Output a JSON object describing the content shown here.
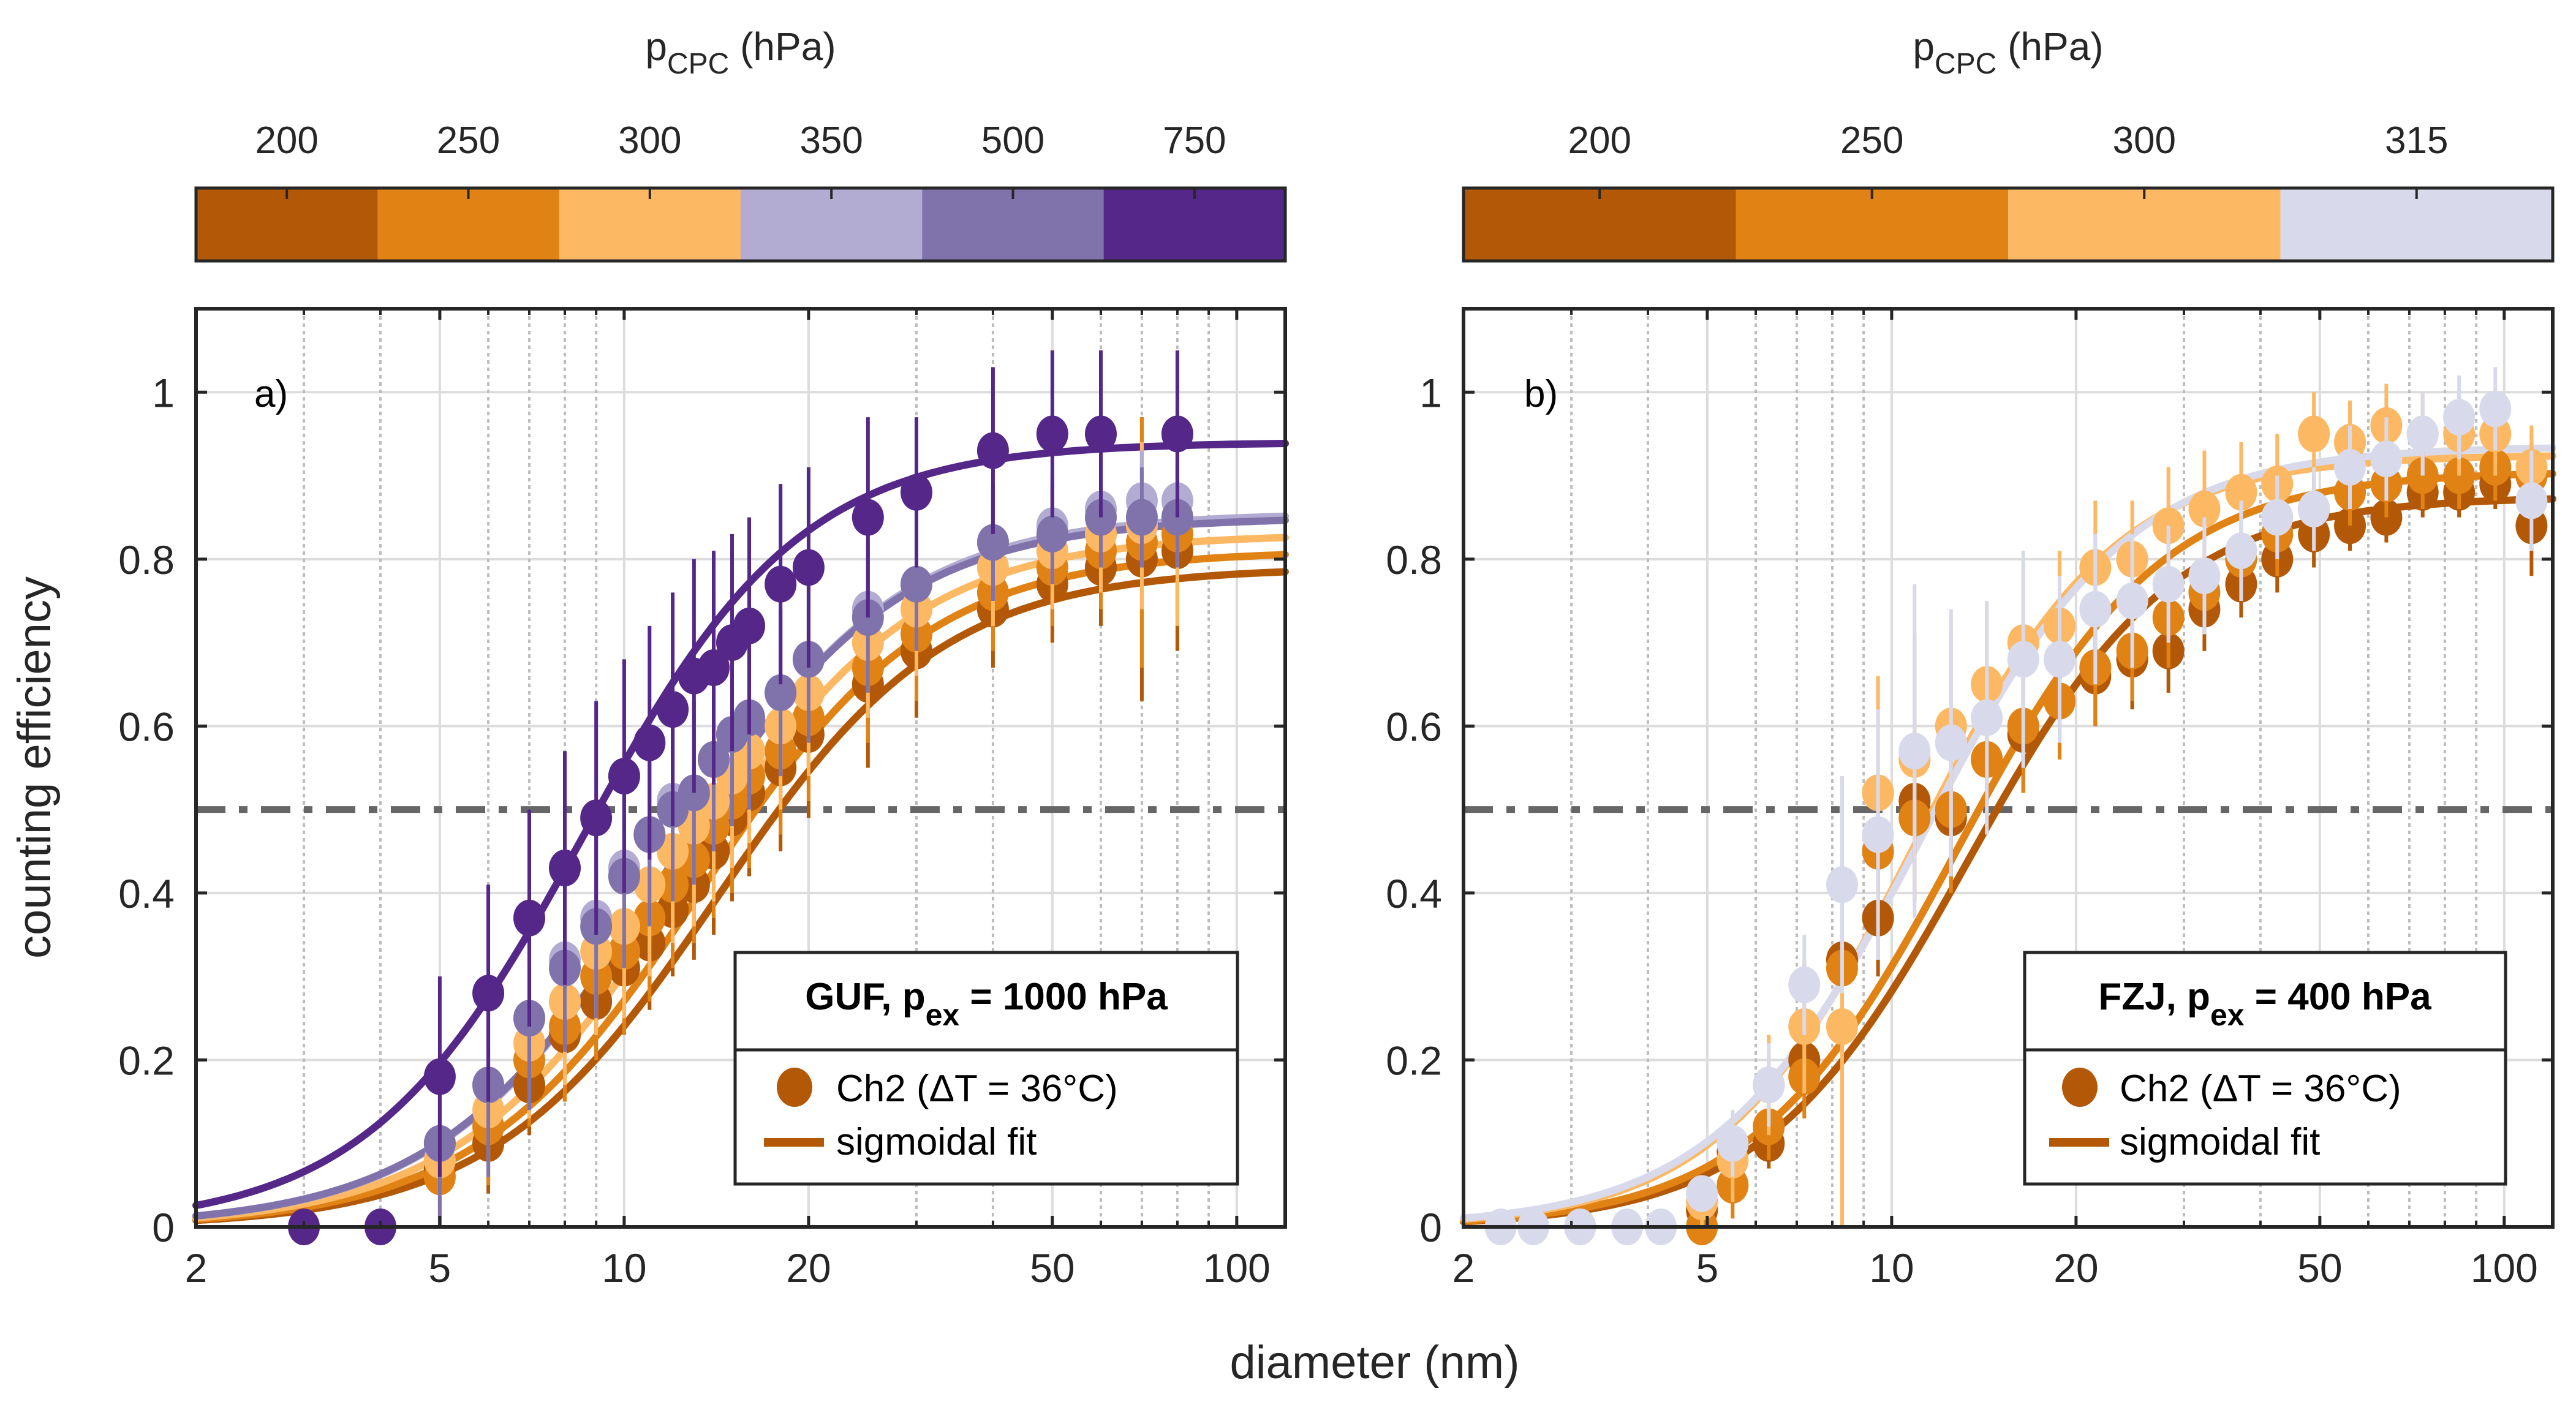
{
  "figure": {
    "xlabel": "diameter (nm)",
    "ylabel": "counting efficiency",
    "threshold_line": {
      "y": 0.5,
      "style": "dash-dot",
      "color": "#666666"
    }
  },
  "chart_data": [
    {
      "type": "scatter",
      "panel_label": "a)",
      "xscale": "log",
      "xlim": [
        2,
        120
      ],
      "ylim": [
        0,
        1.1
      ],
      "xticks": [
        2,
        5,
        10,
        20,
        50,
        100
      ],
      "xtick_labels": [
        "2",
        "5",
        "10",
        "20",
        "50",
        "100"
      ],
      "yticks": [
        0,
        0.2,
        0.4,
        0.6,
        0.8,
        1
      ],
      "ytick_labels": [
        "0",
        "0.2",
        "0.4",
        "0.6",
        "0.8",
        "1"
      ],
      "grid": true,
      "xlabel": "diameter (nm)",
      "ylabel": "counting efficiency",
      "colorbar": {
        "title_main": "p",
        "title_sub": "CPC",
        "title_unit": " (hPa)",
        "labels": [
          "200",
          "250",
          "300",
          "350",
          "500",
          "750"
        ],
        "colors": [
          "#b35806",
          "#e08214",
          "#fdb863",
          "#b2abd2",
          "#8073ac",
          "#542788"
        ]
      },
      "legend": {
        "title_main": "GUF, p",
        "title_sub": "ex",
        "title_tail": " = 1000 hPa",
        "entries": [
          {
            "kind": "marker",
            "label": "Ch2 (ΔT = 36°C)",
            "color": "#b35806"
          },
          {
            "kind": "line",
            "label": "sigmoidal fit",
            "color": "#b35806"
          }
        ],
        "placement": "lower-right"
      },
      "series": [
        {
          "name": "200 hPa",
          "color": "#b35806",
          "fit": {
            "A": 0.79,
            "d50": 14.2,
            "k": 2.35
          },
          "x": [
            5,
            6,
            7,
            8,
            9,
            10,
            11,
            12,
            13,
            14,
            15,
            16,
            18,
            20,
            25,
            30,
            40,
            50,
            60,
            70,
            80
          ],
          "y": [
            0.07,
            0.1,
            0.17,
            0.23,
            0.27,
            0.31,
            0.34,
            0.38,
            0.41,
            0.45,
            0.49,
            0.52,
            0.55,
            0.59,
            0.65,
            0.69,
            0.74,
            0.77,
            0.79,
            0.8,
            0.81
          ],
          "err": [
            0.04,
            0.06,
            0.06,
            0.06,
            0.07,
            0.08,
            0.08,
            0.08,
            0.09,
            0.1,
            0.1,
            0.1,
            0.1,
            0.1,
            0.1,
            0.08,
            0.07,
            0.07,
            0.07,
            0.17,
            0.12
          ]
        },
        {
          "name": "250 hPa",
          "color": "#e08214",
          "fit": {
            "A": 0.81,
            "d50": 13.4,
            "k": 2.35
          },
          "x": [
            5,
            6,
            7,
            8,
            9,
            10,
            11,
            12,
            13,
            14,
            15,
            16,
            18,
            20,
            25,
            30,
            40,
            50,
            60,
            70,
            80
          ],
          "y": [
            0.06,
            0.12,
            0.2,
            0.24,
            0.3,
            0.33,
            0.37,
            0.41,
            0.44,
            0.48,
            0.51,
            0.54,
            0.57,
            0.61,
            0.67,
            0.71,
            0.76,
            0.79,
            0.81,
            0.82,
            0.83
          ],
          "err": [
            0.05,
            0.07,
            0.08,
            0.09,
            0.1,
            0.1,
            0.1,
            0.1,
            0.1,
            0.11,
            0.11,
            0.11,
            0.1,
            0.1,
            0.09,
            0.08,
            0.07,
            0.07,
            0.07,
            0.15,
            0.1
          ]
        },
        {
          "name": "300 hPa",
          "color": "#fdb863",
          "fit": {
            "A": 0.83,
            "d50": 12.6,
            "k": 2.35
          },
          "x": [
            5,
            6,
            7,
            8,
            9,
            10,
            11,
            12,
            13,
            14,
            15,
            16,
            18,
            20,
            25,
            30,
            40,
            50,
            60,
            70,
            80
          ],
          "y": [
            0.08,
            0.14,
            0.22,
            0.27,
            0.33,
            0.36,
            0.41,
            0.45,
            0.48,
            0.51,
            0.54,
            0.57,
            0.6,
            0.64,
            0.7,
            0.74,
            0.79,
            0.81,
            0.83,
            0.84,
            0.85
          ],
          "err": [
            0.05,
            0.08,
            0.09,
            0.1,
            0.1,
            0.11,
            0.11,
            0.11,
            0.12,
            0.12,
            0.11,
            0.11,
            0.1,
            0.1,
            0.09,
            0.08,
            0.07,
            0.07,
            0.07,
            0.1,
            0.13
          ]
        },
        {
          "name": "350 hPa",
          "color": "#b2abd2",
          "fit": {
            "A": 0.855,
            "d50": 11.8,
            "k": 2.35
          },
          "x": [
            5,
            6,
            7,
            8,
            9,
            10,
            11,
            12,
            13,
            14,
            15,
            16,
            18,
            20,
            25,
            30,
            40,
            50,
            60,
            70,
            80
          ],
          "y": [
            0.1,
            0.17,
            0.25,
            0.32,
            0.37,
            0.43,
            0.47,
            0.51,
            0.52,
            0.56,
            0.59,
            0.61,
            0.64,
            0.68,
            0.74,
            0.77,
            0.82,
            0.84,
            0.86,
            0.87,
            0.87
          ],
          "err": [
            0.09,
            0.1,
            0.1,
            0.1,
            0.11,
            0.11,
            0.11,
            0.11,
            0.11,
            0.11,
            0.11,
            0.11,
            0.1,
            0.1,
            0.09,
            0.08,
            0.07,
            0.06,
            0.06,
            0.06,
            0.06
          ]
        },
        {
          "name": "500 hPa",
          "color": "#8073ac",
          "fit": {
            "A": 0.85,
            "d50": 11.7,
            "k": 2.35
          },
          "x": [
            5,
            6,
            7,
            8,
            9,
            10,
            11,
            12,
            13,
            14,
            15,
            16,
            18,
            20,
            25,
            30,
            40,
            50,
            60,
            70,
            80
          ],
          "y": [
            0.1,
            0.17,
            0.25,
            0.31,
            0.36,
            0.42,
            0.47,
            0.5,
            0.52,
            0.56,
            0.59,
            0.61,
            0.64,
            0.68,
            0.73,
            0.77,
            0.82,
            0.83,
            0.85,
            0.85,
            0.85
          ],
          "err": [
            0.1,
            0.11,
            0.11,
            0.1,
            0.11,
            0.11,
            0.11,
            0.11,
            0.11,
            0.11,
            0.11,
            0.11,
            0.1,
            0.1,
            0.09,
            0.08,
            0.07,
            0.06,
            0.06,
            0.06,
            0.06
          ]
        },
        {
          "name": "750 hPa",
          "color": "#542788",
          "fit": {
            "A": 0.94,
            "d50": 8.6,
            "k": 2.45
          },
          "x": [
            3,
            4,
            5,
            6,
            7,
            8,
            9,
            10,
            11,
            12,
            13,
            14,
            15,
            16,
            18,
            20,
            25,
            30,
            40,
            50,
            60,
            80
          ],
          "y": [
            0,
            0,
            0.18,
            0.28,
            0.37,
            0.43,
            0.49,
            0.54,
            0.58,
            0.62,
            0.66,
            0.67,
            0.7,
            0.72,
            0.77,
            0.79,
            0.85,
            0.88,
            0.93,
            0.95,
            0.95,
            0.95
          ],
          "err": [
            0,
            0,
            0.12,
            0.13,
            0.13,
            0.14,
            0.14,
            0.14,
            0.14,
            0.14,
            0.14,
            0.14,
            0.13,
            0.13,
            0.12,
            0.12,
            0.12,
            0.09,
            0.1,
            0.1,
            0.1,
            0.1
          ]
        }
      ]
    },
    {
      "type": "scatter",
      "panel_label": "b)",
      "xscale": "log",
      "xlim": [
        2,
        120
      ],
      "ylim": [
        0,
        1.1
      ],
      "xticks": [
        2,
        5,
        10,
        20,
        50,
        100
      ],
      "xtick_labels": [
        "2",
        "5",
        "10",
        "20",
        "50",
        "100"
      ],
      "yticks": [
        0,
        0.2,
        0.4,
        0.6,
        0.8,
        1
      ],
      "ytick_labels": [
        "0",
        "0.2",
        "0.4",
        "0.6",
        "0.8",
        "1"
      ],
      "grid": true,
      "xlabel": "diameter (nm)",
      "ylabel": "counting efficiency",
      "colorbar": {
        "title_main": "p",
        "title_sub": "CPC",
        "title_unit": " (hPa)",
        "labels": [
          "200",
          "250",
          "300",
          "315"
        ],
        "colors": [
          "#b35806",
          "#e08214",
          "#fdb863",
          "#d8daeb"
        ]
      },
      "legend": {
        "title_main": "FZJ, p",
        "title_sub": "ex",
        "title_tail": " = 400 hPa",
        "entries": [
          {
            "kind": "marker",
            "label": "Ch2 (ΔT = 36°C)",
            "color": "#b35806"
          },
          {
            "kind": "line",
            "label": "sigmoidal fit",
            "color": "#b35806"
          }
        ],
        "placement": "lower-right"
      },
      "series": [
        {
          "name": "200 hPa",
          "color": "#b35806",
          "fit": {
            "A": 0.875,
            "d50": 13.3,
            "k": 2.6
          },
          "x": [
            4.9,
            5.5,
            6.3,
            7.2,
            8.3,
            9.5,
            10.9,
            12.5,
            14.3,
            16.4,
            18.8,
            21.5,
            24.7,
            28.3,
            32.4,
            37.2,
            42.6,
            48.9,
            56,
            64.2,
            73.6,
            84.4,
            96.7,
            110.8
          ],
          "y": [
            0.02,
            0.09,
            0.1,
            0.2,
            0.32,
            0.37,
            0.51,
            0.49,
            0.56,
            0.59,
            0.63,
            0.66,
            0.68,
            0.69,
            0.74,
            0.77,
            0.8,
            0.83,
            0.84,
            0.85,
            0.88,
            0.88,
            0.89,
            0.84
          ],
          "err": [
            0.02,
            0.03,
            0.03,
            0.04,
            0.05,
            0.07,
            0.08,
            0.08,
            0.07,
            0.07,
            0.06,
            0.06,
            0.06,
            0.05,
            0.05,
            0.04,
            0.04,
            0.04,
            0.03,
            0.03,
            0.03,
            0.03,
            0.03,
            0.06
          ]
        },
        {
          "name": "250 hPa",
          "color": "#e08214",
          "fit": {
            "A": 0.905,
            "d50": 12.8,
            "k": 2.6
          },
          "x": [
            4.9,
            5.5,
            6.3,
            7.2,
            8.3,
            9.5,
            10.9,
            12.5,
            14.3,
            16.4,
            18.8,
            21.5,
            24.7,
            28.3,
            32.4,
            37.2,
            42.6,
            48.9,
            56,
            64.2,
            73.6,
            84.4,
            96.7,
            110.8
          ],
          "y": [
            0,
            0.05,
            0.12,
            0.18,
            0.31,
            0.45,
            0.49,
            0.5,
            0.56,
            0.6,
            0.63,
            0.67,
            0.69,
            0.73,
            0.76,
            0.8,
            0.83,
            0.86,
            0.88,
            0.89,
            0.9,
            0.9,
            0.91,
            0.9
          ],
          "err": [
            0.03,
            0.04,
            0.04,
            0.05,
            0.07,
            0.08,
            0.1,
            0.1,
            0.09,
            0.08,
            0.07,
            0.07,
            0.06,
            0.06,
            0.05,
            0.05,
            0.05,
            0.04,
            0.04,
            0.04,
            0.04,
            0.04,
            0.04,
            0.05
          ]
        },
        {
          "name": "300 hPa",
          "color": "#fdb863",
          "fit": {
            "A": 0.925,
            "d50": 11.0,
            "k": 2.7
          },
          "x": [
            3.1,
            4.9,
            5.5,
            6.3,
            7.2,
            8.3,
            9.5,
            10.9,
            12.5,
            14.3,
            16.4,
            18.8,
            21.5,
            24.7,
            28.3,
            32.4,
            37.2,
            42.6,
            48.9,
            56,
            64.2,
            73.6,
            84.4,
            96.7,
            110.8
          ],
          "y": [
            0,
            0.03,
            0.08,
            0.17,
            0.24,
            0.24,
            0.52,
            0.56,
            0.6,
            0.65,
            0.7,
            0.72,
            0.79,
            0.8,
            0.84,
            0.86,
            0.88,
            0.89,
            0.95,
            0.94,
            0.96,
            0.95,
            0.95,
            0.95,
            0.91
          ],
          "err": [
            0,
            0.03,
            0.05,
            0.06,
            0.08,
            0.3,
            0.14,
            0.15,
            0.12,
            0.1,
            0.09,
            0.09,
            0.08,
            0.07,
            0.07,
            0.07,
            0.06,
            0.06,
            0.05,
            0.05,
            0.05,
            0.05,
            0.05,
            0.05,
            0.05
          ]
        },
        {
          "name": "315 hPa",
          "color": "#d8daeb",
          "fit": {
            "A": 0.935,
            "d50": 11.2,
            "k": 2.6
          },
          "x": [
            2.3,
            2.6,
            3.1,
            3.7,
            4.2,
            4.9,
            5.5,
            6.3,
            7.2,
            8.3,
            9.5,
            10.9,
            12.5,
            14.3,
            16.4,
            18.8,
            21.5,
            24.7,
            28.3,
            32.4,
            37.2,
            42.6,
            48.9,
            56,
            64.2,
            73.6,
            84.4,
            96.7,
            110.8
          ],
          "y": [
            0,
            0,
            0,
            0,
            0,
            0.04,
            0.1,
            0.17,
            0.29,
            0.41,
            0.47,
            0.57,
            0.58,
            0.61,
            0.68,
            0.68,
            0.74,
            0.75,
            0.77,
            0.78,
            0.81,
            0.85,
            0.86,
            0.91,
            0.92,
            0.95,
            0.97,
            0.98,
            0.87
          ],
          "err": [
            0,
            0,
            0,
            0,
            0,
            0.02,
            0.04,
            0.05,
            0.06,
            0.13,
            0.15,
            0.2,
            0.16,
            0.14,
            0.13,
            0.1,
            0.09,
            0.08,
            0.07,
            0.07,
            0.06,
            0.05,
            0.05,
            0.05,
            0.05,
            0.05,
            0.05,
            0.05,
            0.06
          ]
        }
      ]
    }
  ]
}
